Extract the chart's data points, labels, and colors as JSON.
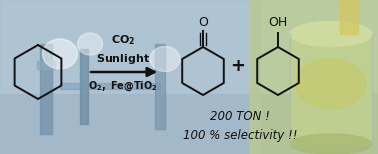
{
  "figsize": [
    3.78,
    1.54
  ],
  "dpi": 100,
  "xlim": [
    0,
    378
  ],
  "ylim": [
    0,
    154
  ],
  "bg_left_color": "#b0c4d4",
  "bg_right_color": "#c8c8a0",
  "sky_color": "#d8e8f0",
  "beaker_color": "#c8d4a0",
  "beaker_liquid_color": "#c8c870",
  "hex_color": "#111111",
  "arrow_color": "#111111",
  "text_color": "#111111",
  "text_co2": "CO$_2$",
  "text_sunlight": "Sunlight",
  "text_conditions": "O$_2$, Fe@TiO$_2$",
  "text_ton": "200 TON !",
  "text_selectivity": "100 % selectivity !!",
  "text_plus": "+",
  "lw_hex": 1.4,
  "lw_arrow": 1.8
}
